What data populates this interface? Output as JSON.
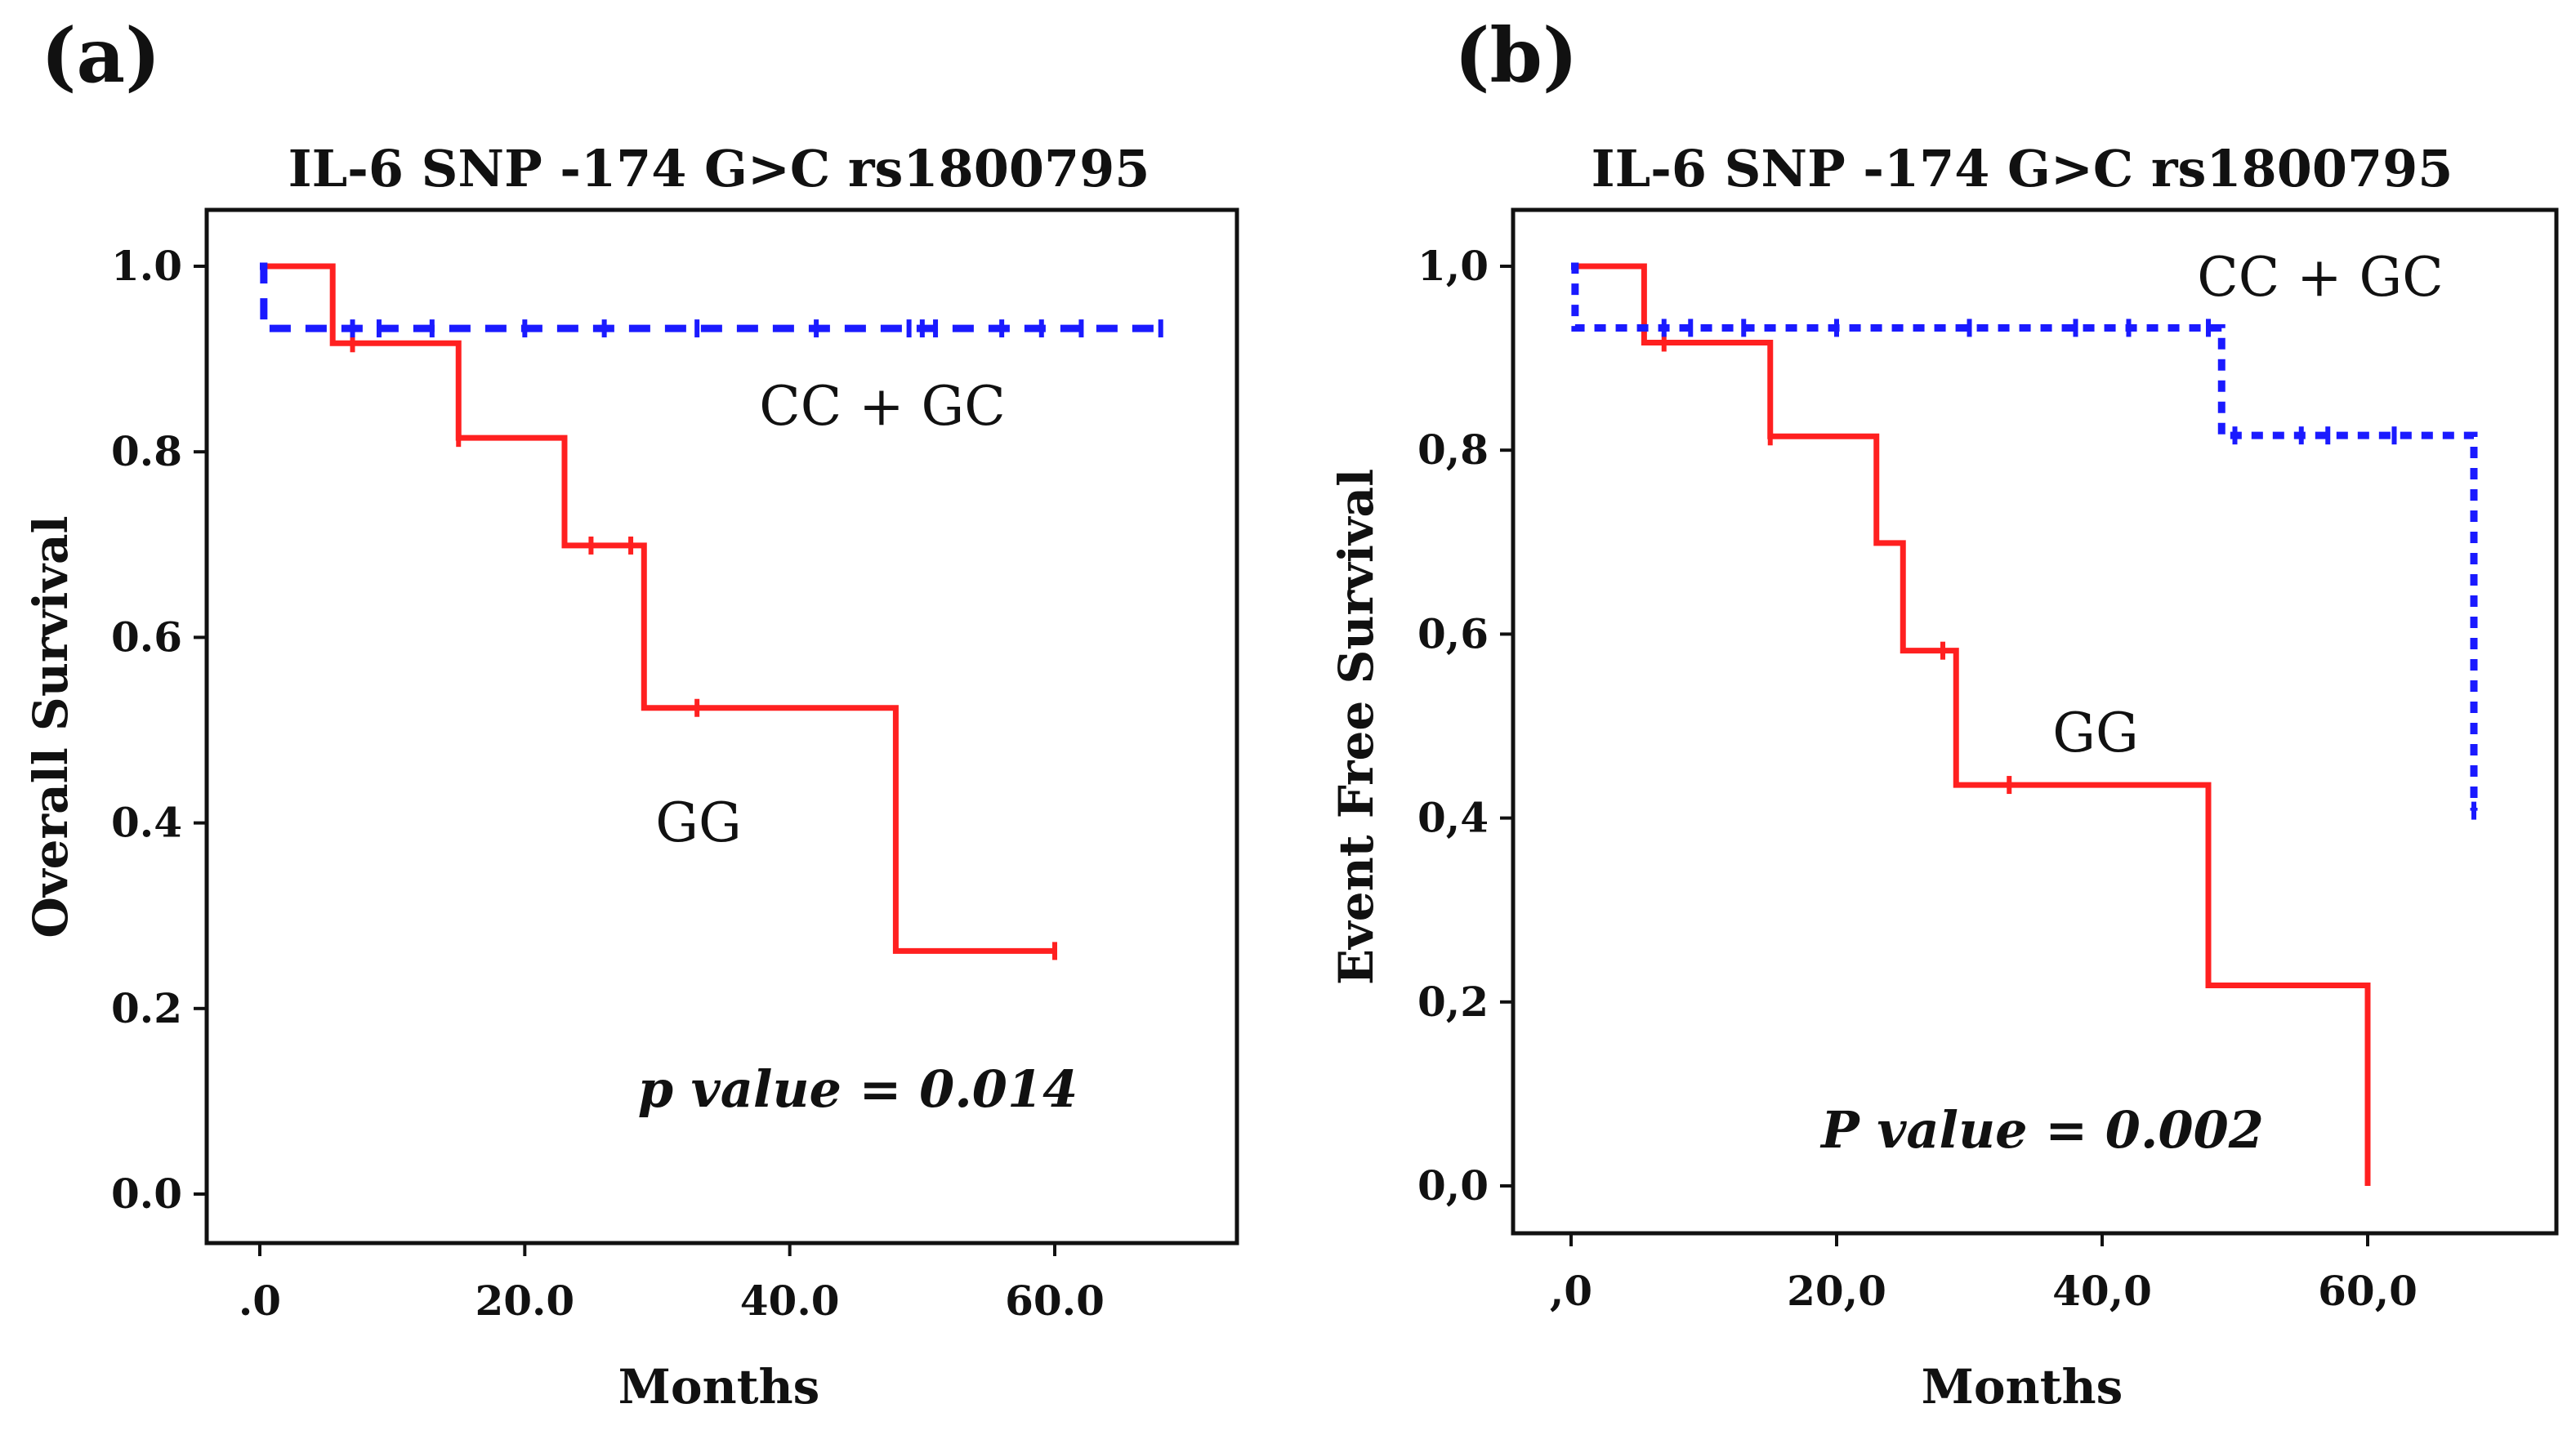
{
  "chart_data": [
    {
      "type": "line",
      "panel_label": "(a)",
      "title": "IL-6 SNP -174 G>C rs1800795",
      "xlabel": "Months",
      "ylabel": "Overall Survival",
      "xlim": [
        -2,
        74
      ],
      "ylim": [
        -0.05,
        1.06
      ],
      "x_ticks": [
        0,
        20,
        40,
        60
      ],
      "x_tick_labels": [
        ".0",
        "20.0",
        "40.0",
        "60.0"
      ],
      "y_ticks": [
        0,
        0.2,
        0.4,
        0.6,
        0.8,
        1.0
      ],
      "y_tick_labels": [
        "0.0",
        "0.2",
        "0.4",
        "0.6",
        "0.8",
        "1.0"
      ],
      "annotation": "p value = 0.014",
      "series": [
        {
          "name": "GG",
          "color": "#ff2020",
          "dash": "solid",
          "steps": [
            [
              0,
              1.0
            ],
            [
              5.5,
              0.917
            ],
            [
              15,
              0.815
            ],
            [
              23,
              0.699
            ],
            [
              29,
              0.524
            ],
            [
              48,
              0.262
            ]
          ],
          "end": 60,
          "censored": [
            7,
            15,
            25,
            28,
            33,
            60
          ]
        },
        {
          "name": "CC + GC",
          "color": "#1a1aff",
          "dash": "dashed",
          "steps": [
            [
              0,
              1.0
            ],
            [
              0.3,
              0.933
            ]
          ],
          "end": 68,
          "censored": [
            7,
            9,
            13,
            20,
            26,
            33,
            42,
            49,
            50,
            51,
            56,
            59,
            62,
            68
          ]
        }
      ]
    },
    {
      "type": "line",
      "panel_label": "(b)",
      "title": "IL-6 SNP -174 G>C rs1800795",
      "xlabel": "Months",
      "ylabel": "Event Free Survival",
      "xlim": [
        -2,
        74
      ],
      "ylim": [
        -0.05,
        1.06
      ],
      "x_ticks": [
        0,
        20,
        40,
        60
      ],
      "x_tick_labels": [
        ",0",
        "20,0",
        "40,0",
        "60,0"
      ],
      "y_ticks": [
        0,
        0.2,
        0.4,
        0.6,
        0.8,
        1.0
      ],
      "y_tick_labels": [
        "0,0",
        "0,2",
        "0,4",
        "0,6",
        "0,8",
        "1,0"
      ],
      "annotation": "P value = 0.002",
      "series": [
        {
          "name": "GG",
          "color": "#ff2020",
          "dash": "solid",
          "steps": [
            [
              0,
              1.0
            ],
            [
              5.5,
              0.917
            ],
            [
              15,
              0.815
            ],
            [
              23,
              0.699
            ],
            [
              25,
              0.582
            ],
            [
              29,
              0.436
            ],
            [
              48,
              0.218
            ],
            [
              60,
              0.0
            ]
          ],
          "end": 60,
          "censored": [
            7,
            15,
            28,
            33
          ]
        },
        {
          "name": "CC + GC",
          "color": "#1a1aff",
          "dash": "dotted",
          "steps": [
            [
              0,
              1.0
            ],
            [
              0.3,
              0.933
            ],
            [
              49,
              0.816
            ],
            [
              68,
              0.408
            ]
          ],
          "end": 68,
          "censored": [
            7,
            9,
            13,
            20,
            30,
            38,
            42,
            48,
            50,
            55,
            57,
            62,
            68
          ]
        }
      ]
    }
  ]
}
